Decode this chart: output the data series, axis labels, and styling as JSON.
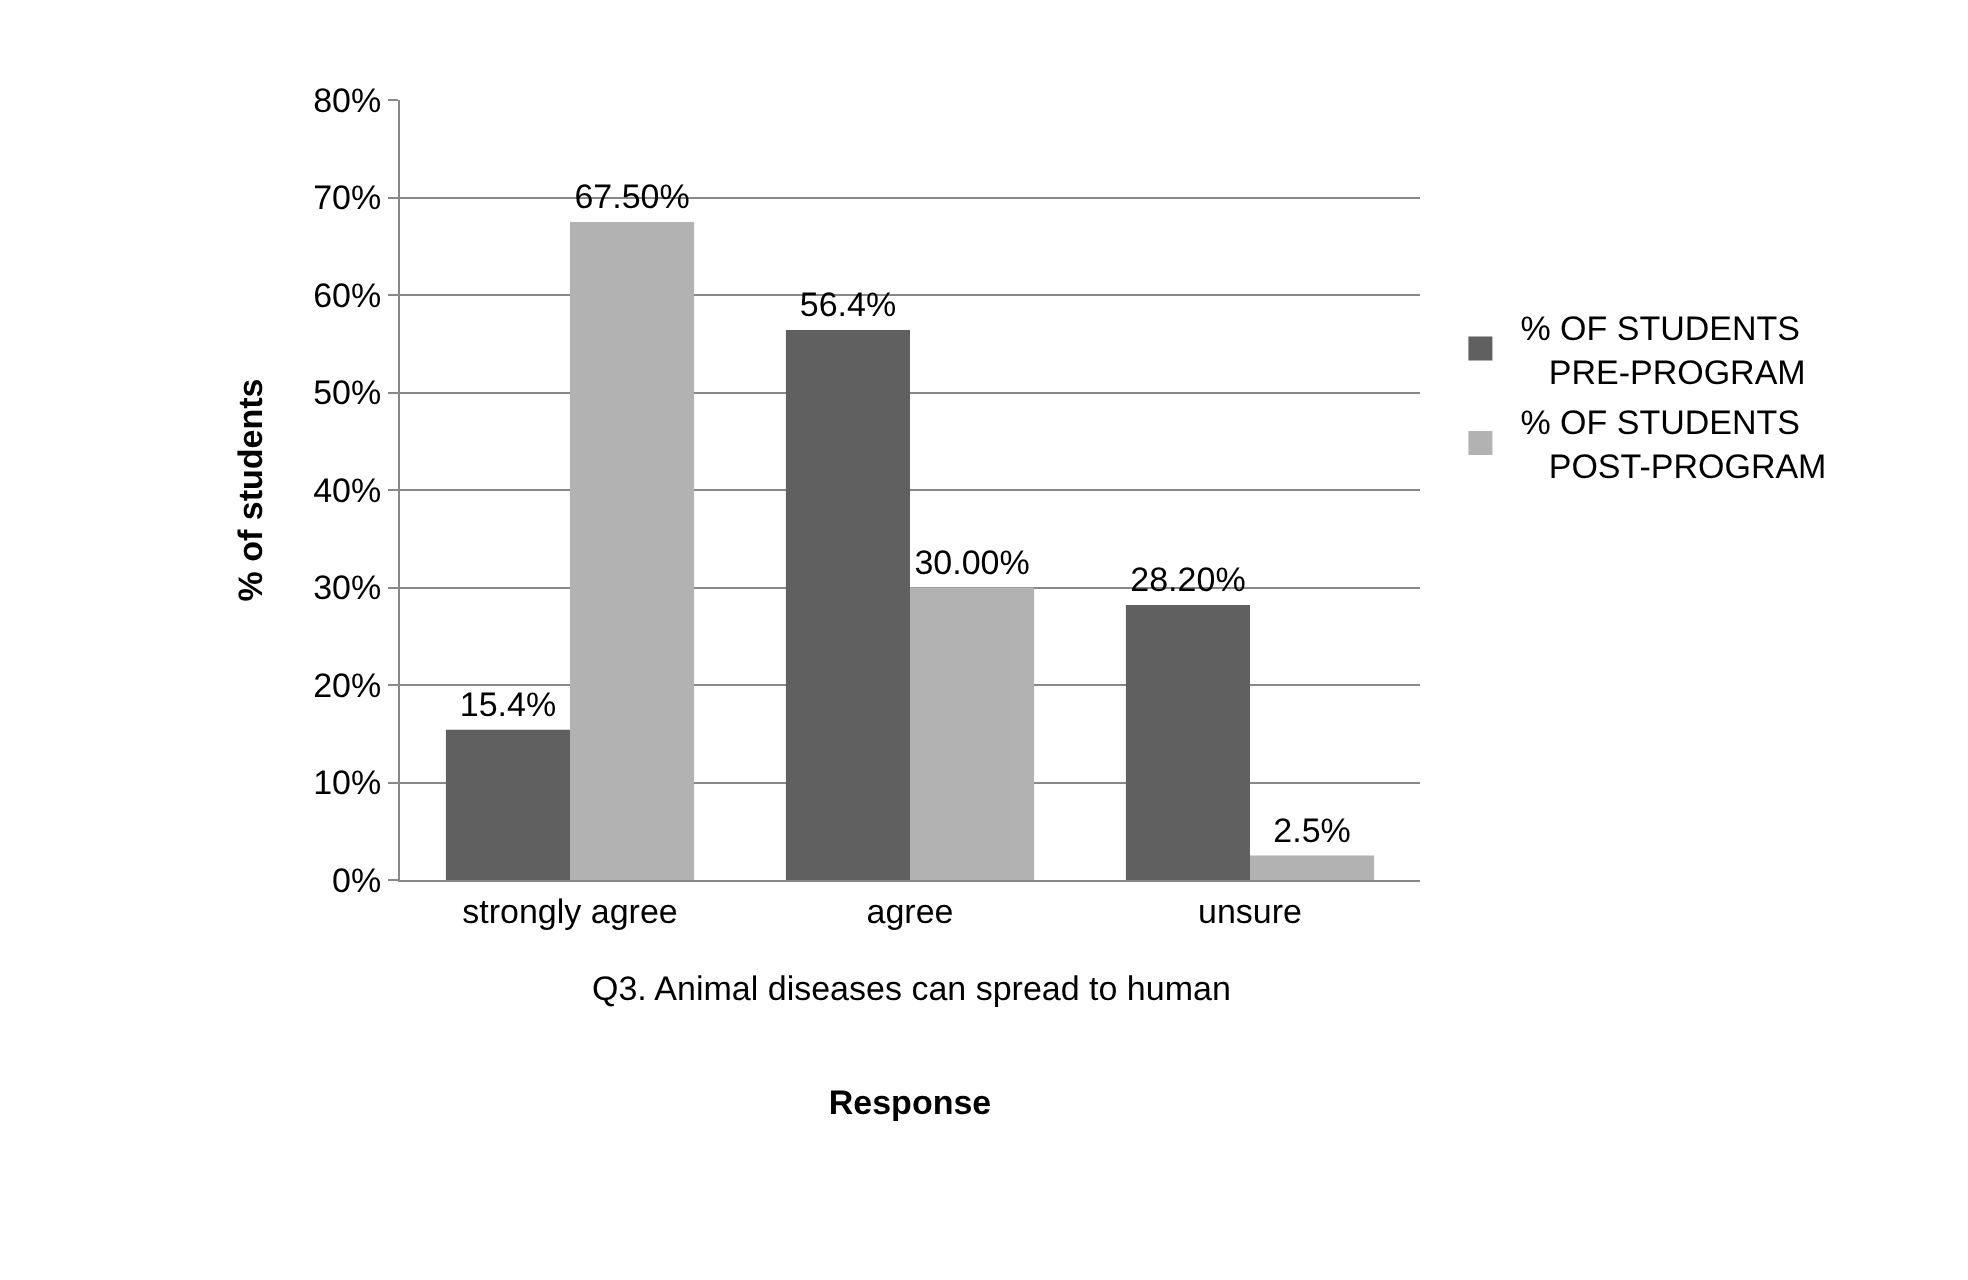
{
  "chart_data": {
    "type": "bar",
    "xlabel": "Response",
    "ylabel": "% of students",
    "categories": [
      "strongly agree",
      "agree",
      "unsure"
    ],
    "series": [
      {
        "name": "% OF STUDENTS PRE-PROGRAM",
        "color": "#606060",
        "values": [
          15.4,
          56.4,
          28.2
        ],
        "value_labels": [
          "15.4%",
          "56.4%",
          "28.20%"
        ]
      },
      {
        "name": "% OF STUDENTS POST-PROGRAM",
        "color": "#b2b2b2",
        "values": [
          67.5,
          30,
          2.5
        ],
        "value_labels": [
          "67.50%",
          "30.00%",
          "2.5%"
        ]
      }
    ],
    "ylim": [
      0,
      80
    ],
    "yticks": [
      {
        "value": 0,
        "label": "0%"
      },
      {
        "value": 10,
        "label": "10%"
      },
      {
        "value": 20,
        "label": "20%"
      },
      {
        "value": 30,
        "label": "30%"
      },
      {
        "value": 40,
        "label": "40%"
      },
      {
        "value": 50,
        "label": "50%"
      },
      {
        "value": 60,
        "label": "60%"
      },
      {
        "value": 70,
        "label": "70%"
      },
      {
        "value": 80,
        "label": "80%"
      }
    ],
    "grid": "y",
    "legend": "right",
    "annotations": [
      "Q3. Animal diseases can spread to human"
    ]
  }
}
